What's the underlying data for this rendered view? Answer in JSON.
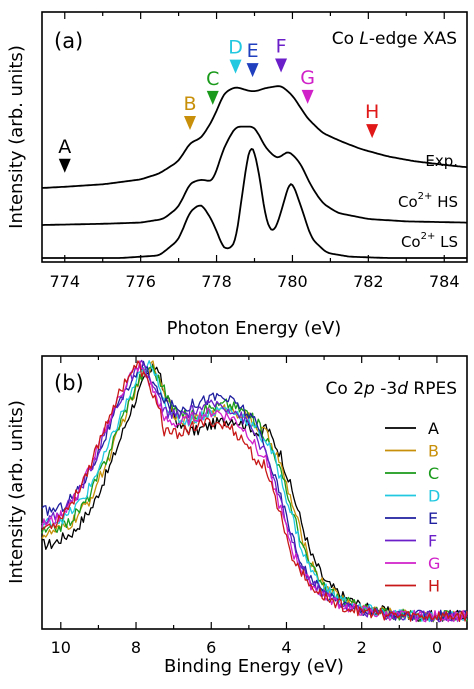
{
  "chart_data": [
    {
      "type": "line",
      "panel_label": "(a)",
      "title": "Co L-edge XAS",
      "title_parts": [
        "Co ",
        "L",
        "-edge XAS"
      ],
      "xlabel": "Photon Energy (eV)",
      "ylabel": "Intensity (arb. units)",
      "xlim": [
        773.4,
        784.6
      ],
      "x_ticks": [
        774,
        776,
        778,
        780,
        782,
        784
      ],
      "x_tick_labels": [
        "774",
        "776",
        "778",
        "780",
        "782",
        "784"
      ],
      "series": [
        {
          "name": "Exp.",
          "x": [
            773.4,
            774.0,
            775.0,
            776.0,
            776.5,
            777.0,
            777.3,
            777.6,
            777.9,
            778.2,
            778.5,
            778.8,
            779.0,
            779.3,
            779.7,
            780.0,
            780.4,
            780.8,
            781.3,
            781.8,
            782.5,
            783.2,
            784.0,
            784.6
          ],
          "y": [
            0.0,
            0.01,
            0.03,
            0.07,
            0.12,
            0.22,
            0.37,
            0.41,
            0.56,
            0.78,
            0.83,
            0.8,
            0.79,
            0.82,
            0.84,
            0.76,
            0.57,
            0.45,
            0.38,
            0.32,
            0.26,
            0.22,
            0.19,
            0.17
          ]
        },
        {
          "name": "Co2+ HS",
          "label_base": "Co",
          "label_sup": "2+",
          "label_tail": " HS",
          "x": [
            773.4,
            775.0,
            776.0,
            776.6,
            777.0,
            777.3,
            777.6,
            777.9,
            778.2,
            778.5,
            778.8,
            779.0,
            779.3,
            779.6,
            779.9,
            780.2,
            780.5,
            780.8,
            781.2,
            782.0,
            783.0,
            784.6
          ],
          "y": [
            0.0,
            0.01,
            0.02,
            0.05,
            0.15,
            0.35,
            0.38,
            0.36,
            0.65,
            0.82,
            0.82,
            0.82,
            0.64,
            0.55,
            0.62,
            0.52,
            0.32,
            0.18,
            0.1,
            0.05,
            0.03,
            0.02
          ]
        },
        {
          "name": "Co2+ LS",
          "label_base": "Co",
          "label_sup": "2+",
          "label_tail": " LS",
          "x": [
            773.4,
            775.5,
            776.5,
            777.0,
            777.3,
            777.6,
            777.9,
            778.2,
            778.5,
            778.7,
            778.9,
            779.1,
            779.3,
            779.5,
            779.7,
            779.95,
            780.2,
            780.5,
            780.9,
            781.5,
            782.5,
            784.6
          ],
          "y": [
            0.0,
            0.0,
            0.02,
            0.14,
            0.36,
            0.42,
            0.28,
            0.06,
            0.1,
            0.55,
            0.92,
            0.7,
            0.28,
            0.18,
            0.35,
            0.62,
            0.42,
            0.15,
            0.04,
            0.01,
            0.0,
            0.0
          ]
        }
      ],
      "markers": [
        {
          "label": "A",
          "x": 774.0,
          "color": "#000000"
        },
        {
          "label": "B",
          "x": 777.3,
          "color": "#c8900a"
        },
        {
          "label": "C",
          "x": 777.9,
          "color": "#1a9a1a"
        },
        {
          "label": "D",
          "x": 778.5,
          "color": "#22c8e0"
        },
        {
          "label": "E",
          "x": 778.95,
          "color": "#1f3fbf"
        },
        {
          "label": "F",
          "x": 779.7,
          "color": "#6a1fc8"
        },
        {
          "label": "G",
          "x": 780.4,
          "color": "#d020c8"
        },
        {
          "label": "H",
          "x": 782.1,
          "color": "#e01818"
        }
      ]
    },
    {
      "type": "line",
      "panel_label": "(b)",
      "title": "Co 2p-3d RPES",
      "title_parts": [
        "Co 2",
        "p",
        " -3",
        "d",
        " RPES"
      ],
      "xlabel": "Binding Energy (eV)",
      "ylabel": "Intensity (arb. units)",
      "xlim": [
        10.5,
        -0.8
      ],
      "x_ticks": [
        10,
        8,
        6,
        4,
        2,
        0
      ],
      "x_tick_labels": [
        "10",
        "8",
        "6",
        "4",
        "2",
        "0"
      ],
      "series": [
        {
          "name": "A",
          "color": "#000000"
        },
        {
          "name": "B",
          "color": "#c8900a"
        },
        {
          "name": "C",
          "color": "#1a9a1a"
        },
        {
          "name": "D",
          "color": "#22c8e0"
        },
        {
          "name": "E",
          "color": "#1f1f9f"
        },
        {
          "name": "F",
          "color": "#6a1fc8"
        },
        {
          "name": "G",
          "color": "#d020c8"
        },
        {
          "name": "H",
          "color": "#c81818"
        }
      ],
      "legend_placement": "right"
    }
  ]
}
